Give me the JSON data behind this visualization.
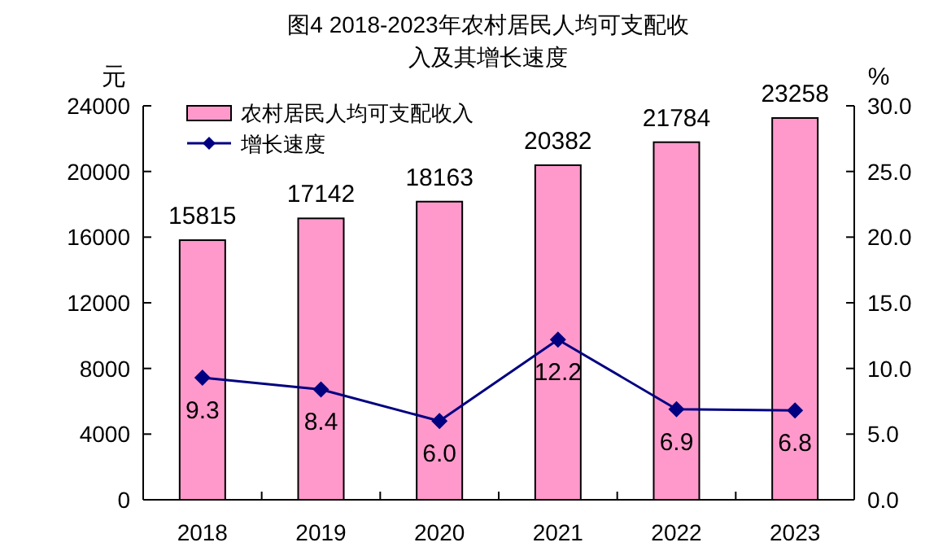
{
  "chart_data": {
    "type": "bar",
    "title": "图4 2018-2023年农村居民人均可支配收入及其增长速度",
    "ylabel": "元",
    "y2label": "%",
    "categories": [
      "2018",
      "2019",
      "2020",
      "2021",
      "2022",
      "2023"
    ],
    "series": [
      {
        "name": "农村居民人均可支配收入",
        "color": "#ff99cc",
        "values": [
          15815,
          17142,
          18163,
          20382,
          21784,
          23258
        ]
      },
      {
        "name": "增长速度",
        "type": "line",
        "axis": "y2",
        "color": "#000080",
        "marker": "diamond",
        "values": [
          9.3,
          8.4,
          6.0,
          12.2,
          6.9,
          6.8
        ],
        "value_labels": [
          "9.3",
          "8.4",
          "6.0",
          "12.2",
          "6.9",
          "6.8"
        ]
      }
    ],
    "ylim": [
      0,
      24000
    ],
    "yticks": [
      0,
      4000,
      8000,
      12000,
      16000,
      20000,
      24000
    ],
    "y2lim": [
      0,
      30
    ],
    "y2ticks": [
      {
        "value": 0,
        "label": "0.0"
      },
      {
        "value": 5,
        "label": "5.0"
      },
      {
        "value": 10,
        "label": "10.0"
      },
      {
        "value": 15,
        "label": "15.0"
      },
      {
        "value": 20,
        "label": "20.0"
      },
      {
        "value": 25,
        "label": "25.0"
      },
      {
        "value": 30,
        "label": "30.0"
      }
    ],
    "data_labels": true,
    "grid": false,
    "legend": "top left"
  }
}
